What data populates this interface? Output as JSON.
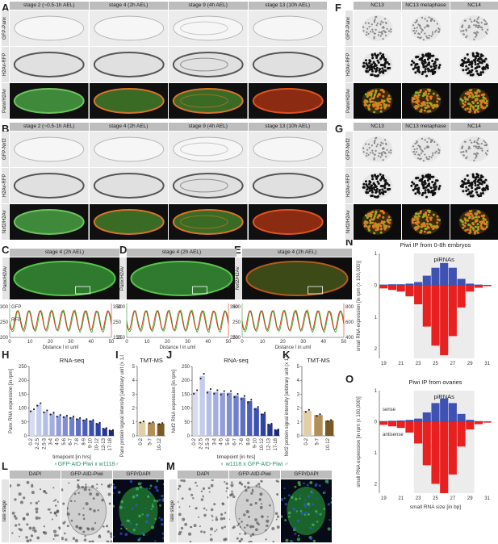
{
  "panels": {
    "A": "A",
    "B": "B",
    "C": "C",
    "D": "D",
    "E": "E",
    "F": "F",
    "G": "G",
    "H": "H",
    "I": "I",
    "J": "J",
    "K": "K",
    "L": "L",
    "M": "M",
    "N": "N",
    "O": "O"
  },
  "stages": [
    "stage 2 (~0.5-1h AEL)",
    "stage 4 (2h AEL)",
    "stage 9 (4h AEL)",
    "stage 13 (10h AEL)"
  ],
  "nc_stages": [
    "NC13",
    "NC13 metaphase",
    "NC14"
  ],
  "rows_A": [
    "GFP-Panx",
    "H2Av-RFP",
    "Panx/H2Av"
  ],
  "rows_B": [
    "GFP-Nxf2",
    "H2Av-RFP",
    "Nxf2/H2Av"
  ],
  "rows_F": [
    "GFP-Panx",
    "H2Av-RFP",
    "Panx/H2Av"
  ],
  "rows_G": [
    "GFP-Nxf2",
    "H2Av-RFP",
    "Nxf2/H2Av"
  ],
  "CDE": {
    "stage_label": "stage 4 (2h AEL)",
    "C_side": "Panx/H2Av",
    "D_side": "Panx/H2Av",
    "E_side": "Nxf2/H2Av",
    "ylabel": "Signal intensity [arbitrary unit]",
    "xlabel": "Distance [ in μm]",
    "gfp": "GFP",
    "rfp": "RFP",
    "C_left_ticks": [
      "300",
      "250",
      "200"
    ],
    "C_right_ticks": [
      "350",
      "250",
      "150"
    ],
    "D_left_ticks": [
      "300",
      "250"
    ],
    "D_right_ticks": [
      "350",
      "250"
    ],
    "E_left_ticks": [
      "300",
      "250",
      "200"
    ],
    "E_right_ticks": [
      "800",
      "600",
      "400"
    ],
    "x_ticks": [
      "0",
      "10",
      "20",
      "30",
      "40",
      "50"
    ]
  },
  "H": {
    "title": "RNA-seq",
    "ylabel": "Panx RNA expression [in rpm]",
    "xlabel": "timepoint [in hrs]"
  },
  "I": {
    "title": "TMT-MS",
    "ylabel": "Panx protein signal intensity [arbitrary unit (x 1,000)]"
  },
  "J": {
    "title": "RNA-seq",
    "ylabel": "Nxf2 RNA expression [in rpm]",
    "xlabel": "timepoint [in hrs]"
  },
  "K": {
    "title": "TMT-MS",
    "ylabel": "Nxf2 protein signal intensity [arbitrary unit (x 1,000)]"
  },
  "L": {
    "title": "♀GFP-AID-Piwi x w1118♂",
    "cols": [
      "DAPI",
      "GFP-AID-Piwi",
      "GFP/DAPI"
    ],
    "side": "late stage"
  },
  "M": {
    "title": "♀ w1118 x GFP-AID-Piwi ♂",
    "cols": [
      "DAPI",
      "GFP-AID-Piwi",
      "GFP/DAPI"
    ],
    "side": "late stage"
  },
  "N": {
    "title": "Piwi IP from 0-8h embryos",
    "band": "piRNAs",
    "ylabel": "small RNA expression [in rpm (x 100,000)]"
  },
  "O": {
    "title": "Piwi IP from ovaries",
    "band": "piRNAs",
    "ylabel": "small RNA expression [in rpm (x 100,000)]",
    "xlabel": "small RNA size [in bp]",
    "sense": "sense",
    "antisense": "antisense"
  },
  "chart_data": [
    {
      "type": "bar",
      "id": "H",
      "title": "RNA-seq",
      "ylabel": "Panx RNA expression [in rpm]",
      "xlabel": "timepoint [in hrs]",
      "categories": [
        "0-2",
        "2-2.5",
        "2.5-3",
        "3-4",
        "4-5",
        "5-6",
        "6-7",
        "7-8",
        "8-9",
        "9-10",
        "10-12",
        "12-13",
        "17-18"
      ],
      "values": [
        92,
        113,
        88,
        80,
        72,
        70,
        67,
        62,
        58,
        55,
        45,
        27,
        20
      ],
      "ylim": [
        0,
        250
      ],
      "yticks": [
        0,
        50,
        100,
        150,
        200,
        250
      ]
    },
    {
      "type": "bar",
      "id": "I",
      "title": "TMT-MS",
      "ylabel": "Panx protein signal intensity [arbitrary unit (x 1,000)]",
      "categories": [
        "0-2",
        "5-7",
        "10-12"
      ],
      "values": [
        1.0,
        0.95,
        0.88
      ],
      "ylim": [
        0,
        5
      ],
      "yticks": [
        0,
        1,
        2,
        3,
        4,
        5
      ]
    },
    {
      "type": "bar",
      "id": "J",
      "title": "RNA-seq",
      "ylabel": "Nxf2 RNA expression [in rpm]",
      "xlabel": "timepoint [in hrs]",
      "categories": [
        "0-2",
        "2-2.5",
        "2.5-3",
        "3-4",
        "4-5",
        "5-6",
        "6-7",
        "7-8",
        "8-9",
        "9-10",
        "10-12",
        "12-13",
        "17-18"
      ],
      "values": [
        158,
        215,
        162,
        158,
        155,
        155,
        145,
        138,
        125,
        100,
        80,
        42,
        22
      ],
      "ylim": [
        0,
        250
      ],
      "yticks": [
        0,
        50,
        100,
        150,
        200,
        250
      ]
    },
    {
      "type": "bar",
      "id": "K",
      "title": "TMT-MS",
      "ylabel": "Nxf2 protein signal intensity [arbitrary unit (x 1,000)]",
      "categories": [
        "0-2",
        "5-7",
        "10-12"
      ],
      "values": [
        1.8,
        1.5,
        1.1
      ],
      "ylim": [
        0,
        5
      ],
      "yticks": [
        0,
        1,
        2,
        3,
        4,
        5
      ]
    },
    {
      "type": "bar",
      "id": "N",
      "title": "Piwi IP from 0-8h embryos",
      "ylabel": "small RNA expression [in rpm (x 100,000)]",
      "categories": [
        19,
        20,
        21,
        22,
        23,
        24,
        25,
        26,
        27,
        28,
        29,
        30,
        31
      ],
      "series": [
        {
          "name": "sense",
          "values": [
            0.02,
            0.03,
            0.03,
            0.05,
            0.1,
            0.3,
            0.55,
            0.7,
            0.55,
            0.2,
            0.05,
            0.02,
            0.01
          ]
        },
        {
          "name": "antisense",
          "values": [
            -0.1,
            -0.15,
            -0.2,
            -0.35,
            -0.6,
            -1.3,
            -1.9,
            -2.2,
            -1.6,
            -0.7,
            -0.2,
            -0.08,
            -0.03
          ]
        }
      ],
      "ylim": [
        -2.3,
        1.0
      ]
    },
    {
      "type": "bar",
      "id": "O",
      "title": "Piwi IP from ovaries",
      "ylabel": "small RNA expression [in rpm (x 100,000)]",
      "xlabel": "small RNA size [in bp]",
      "categories": [
        19,
        20,
        21,
        22,
        23,
        24,
        25,
        26,
        27,
        28,
        29,
        30,
        31
      ],
      "series": [
        {
          "name": "sense",
          "values": [
            0.02,
            0.03,
            0.04,
            0.06,
            0.1,
            0.3,
            0.6,
            0.75,
            0.6,
            0.25,
            0.06,
            0.02,
            0.01
          ]
        },
        {
          "name": "antisense",
          "values": [
            -0.1,
            -0.15,
            -0.2,
            -0.35,
            -0.7,
            -1.4,
            -2.0,
            -2.3,
            -1.7,
            -0.8,
            -0.25,
            -0.08,
            -0.03
          ]
        }
      ],
      "ylim": [
        -2.3,
        1.0
      ]
    }
  ]
}
